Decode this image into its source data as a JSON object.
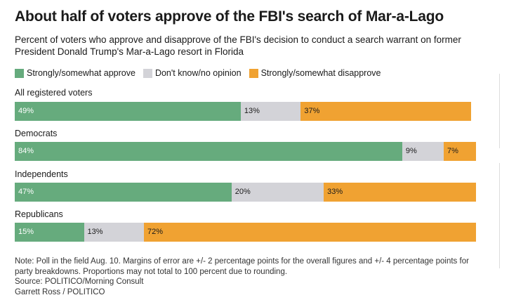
{
  "chart_data": {
    "type": "bar",
    "orientation": "horizontal",
    "stacked": true,
    "title": "About half of voters approve of the FBI's search of Mar-a-Lago",
    "subtitle": "Percent of voters who approve and disapprove of the FBI's decision to conduct a search warrant on former President Donald Trump's Mar-a-Lago resort in Florida",
    "categories": [
      "All registered voters",
      "Democrats",
      "Independents",
      "Republicans"
    ],
    "series": [
      {
        "name": "Strongly/somewhat approve",
        "color": "#66ab7d",
        "label_color": "#ffffff",
        "values": [
          49,
          84,
          47,
          15
        ]
      },
      {
        "name": "Don't know/no opinion",
        "color": "#d3d3d8",
        "label_color": "#1a1a1a",
        "values": [
          13,
          9,
          20,
          13
        ]
      },
      {
        "name": "Strongly/somewhat disapprove",
        "color": "#f0a232",
        "label_color": "#1a1a1a",
        "values": [
          37,
          7,
          33,
          72
        ]
      }
    ],
    "value_suffix": "%",
    "legend_position": "top-left",
    "xlim": [
      0,
      100
    ]
  },
  "footer": {
    "note": "Note: Poll in the field Aug. 10. Margins of error are +/- 2 percentage points for the overall figures and +/- 4 percentage points for party breakdowns. Proportions may not total to 100 percent due to rounding.",
    "source": "Source: POLITICO/Morning Consult",
    "credit": "Garrett Ross / POLITICO"
  }
}
